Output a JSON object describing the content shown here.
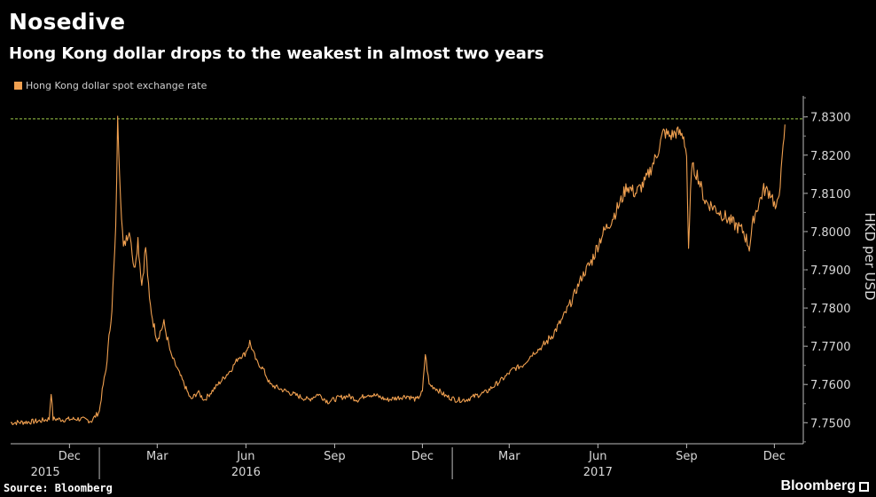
{
  "title": "Nosedive",
  "subtitle": "Hong Kong dollar drops to the weakest in almost two years",
  "source": "Source: Bloomberg",
  "brand": "Bloomberg",
  "colors": {
    "series": "#f0a050",
    "threshold": "#7fa33a",
    "background": "#000000"
  },
  "chart_data": {
    "type": "line",
    "title": "Nosedive",
    "subtitle": "Hong Kong dollar drops to the weakest in almost two years",
    "ylabel": "HKD per USD",
    "ylim": [
      7.7445,
      7.8355
    ],
    "xlim": [
      "2015-10-01",
      "2017-12-31"
    ],
    "y_axis_side": "right",
    "grid": false,
    "legend": "top-left",
    "yticks": [
      "7.8300",
      "7.8200",
      "7.8100",
      "7.8000",
      "7.7900",
      "7.7800",
      "7.7700",
      "7.7600",
      "7.7500"
    ],
    "xticks": [
      {
        "label": "Dec",
        "date": "2015-12-01"
      },
      {
        "label": "Mar",
        "date": "2016-03-01"
      },
      {
        "label": "Jun",
        "date": "2016-06-01"
      },
      {
        "label": "Sep",
        "date": "2016-09-01"
      },
      {
        "label": "Dec",
        "date": "2016-12-01"
      },
      {
        "label": "Mar",
        "date": "2017-03-01"
      },
      {
        "label": "Jun",
        "date": "2017-06-01"
      },
      {
        "label": "Sep",
        "date": "2017-09-01"
      },
      {
        "label": "Dec",
        "date": "2017-12-01"
      }
    ],
    "year_labels": [
      {
        "label": "2015",
        "date": "2015-11-06"
      },
      {
        "label": "2016",
        "date": "2016-06-01"
      },
      {
        "label": "2017",
        "date": "2017-06-01"
      }
    ],
    "year_separators": [
      "2016-01-01",
      "2017-01-01"
    ],
    "reference_line": {
      "value": 7.8295,
      "style": "dashed"
    },
    "series": [
      {
        "name": "Hong Kong dollar spot exchange rate",
        "points": [
          [
            "2015-10-01",
            7.75
          ],
          [
            "2015-10-20",
            7.7502
          ],
          [
            "2015-11-01",
            7.7505
          ],
          [
            "2015-11-10",
            7.751
          ],
          [
            "2015-11-12",
            7.758
          ],
          [
            "2015-11-14",
            7.751
          ],
          [
            "2015-11-25",
            7.7508
          ],
          [
            "2015-12-10",
            7.751
          ],
          [
            "2015-12-24",
            7.7505
          ],
          [
            "2016-01-01",
            7.753
          ],
          [
            "2016-01-05",
            7.76
          ],
          [
            "2016-01-08",
            7.764
          ],
          [
            "2016-01-11",
            7.772
          ],
          [
            "2016-01-14",
            7.78
          ],
          [
            "2016-01-18",
            7.8
          ],
          [
            "2016-01-20",
            7.829
          ],
          [
            "2016-01-23",
            7.81
          ],
          [
            "2016-01-26",
            7.795
          ],
          [
            "2016-01-29",
            7.799
          ],
          [
            "2016-02-02",
            7.8
          ],
          [
            "2016-02-06",
            7.79
          ],
          [
            "2016-02-10",
            7.798
          ],
          [
            "2016-02-14",
            7.786
          ],
          [
            "2016-02-18",
            7.796
          ],
          [
            "2016-02-22",
            7.782
          ],
          [
            "2016-02-26",
            7.776
          ],
          [
            "2016-03-01",
            7.772
          ],
          [
            "2016-03-08",
            7.776
          ],
          [
            "2016-03-15",
            7.768
          ],
          [
            "2016-03-22",
            7.764
          ],
          [
            "2016-03-29",
            7.76
          ],
          [
            "2016-04-05",
            7.756
          ],
          [
            "2016-04-12",
            7.758
          ],
          [
            "2016-04-19",
            7.756
          ],
          [
            "2016-04-26",
            7.758
          ],
          [
            "2016-05-03",
            7.76
          ],
          [
            "2016-05-10",
            7.762
          ],
          [
            "2016-05-17",
            7.764
          ],
          [
            "2016-05-24",
            7.767
          ],
          [
            "2016-05-31",
            7.768
          ],
          [
            "2016-06-05",
            7.771
          ],
          [
            "2016-06-12",
            7.766
          ],
          [
            "2016-06-19",
            7.764
          ],
          [
            "2016-06-26",
            7.76
          ],
          [
            "2016-07-05",
            7.759
          ],
          [
            "2016-07-15",
            7.758
          ],
          [
            "2016-07-25",
            7.757
          ],
          [
            "2016-08-05",
            7.756
          ],
          [
            "2016-08-15",
            7.7575
          ],
          [
            "2016-08-25",
            7.7555
          ],
          [
            "2016-09-05",
            7.7565
          ],
          [
            "2016-09-15",
            7.757
          ],
          [
            "2016-09-25",
            7.756
          ],
          [
            "2016-10-05",
            7.7575
          ],
          [
            "2016-10-15",
            7.757
          ],
          [
            "2016-10-25",
            7.756
          ],
          [
            "2016-11-05",
            7.7565
          ],
          [
            "2016-11-15",
            7.757
          ],
          [
            "2016-11-25",
            7.756
          ],
          [
            "2016-12-01",
            7.758
          ],
          [
            "2016-12-04",
            7.768
          ],
          [
            "2016-12-08",
            7.76
          ],
          [
            "2016-12-15",
            7.759
          ],
          [
            "2016-12-25",
            7.757
          ],
          [
            "2017-01-05",
            7.756
          ],
          [
            "2017-01-15",
            7.756
          ],
          [
            "2017-01-25",
            7.757
          ],
          [
            "2017-02-05",
            7.758
          ],
          [
            "2017-02-15",
            7.76
          ],
          [
            "2017-02-25",
            7.762
          ],
          [
            "2017-03-05",
            7.764
          ],
          [
            "2017-03-15",
            7.765
          ],
          [
            "2017-03-25",
            7.768
          ],
          [
            "2017-04-05",
            7.77
          ],
          [
            "2017-04-15",
            7.773
          ],
          [
            "2017-04-25",
            7.777
          ],
          [
            "2017-05-05",
            7.782
          ],
          [
            "2017-05-15",
            7.788
          ],
          [
            "2017-05-25",
            7.792
          ],
          [
            "2017-06-05",
            7.799
          ],
          [
            "2017-06-15",
            7.803
          ],
          [
            "2017-06-25",
            7.808
          ],
          [
            "2017-07-01",
            7.812
          ],
          [
            "2017-07-10",
            7.81
          ],
          [
            "2017-07-20",
            7.813
          ],
          [
            "2017-08-01",
            7.82
          ],
          [
            "2017-08-08",
            7.826
          ],
          [
            "2017-08-15",
            7.825
          ],
          [
            "2017-08-22",
            7.826
          ],
          [
            "2017-08-29",
            7.825
          ],
          [
            "2017-09-01",
            7.82
          ],
          [
            "2017-09-03",
            7.794
          ],
          [
            "2017-09-06",
            7.817
          ],
          [
            "2017-09-12",
            7.815
          ],
          [
            "2017-09-20",
            7.808
          ],
          [
            "2017-10-01",
            7.806
          ],
          [
            "2017-10-15",
            7.803
          ],
          [
            "2017-10-30",
            7.8
          ],
          [
            "2017-11-05",
            7.796
          ],
          [
            "2017-11-10",
            7.804
          ],
          [
            "2017-11-20",
            7.811
          ],
          [
            "2017-11-28",
            7.81
          ],
          [
            "2017-12-03",
            7.805
          ],
          [
            "2017-12-08",
            7.815
          ],
          [
            "2017-12-12",
            7.828
          ]
        ]
      }
    ]
  }
}
